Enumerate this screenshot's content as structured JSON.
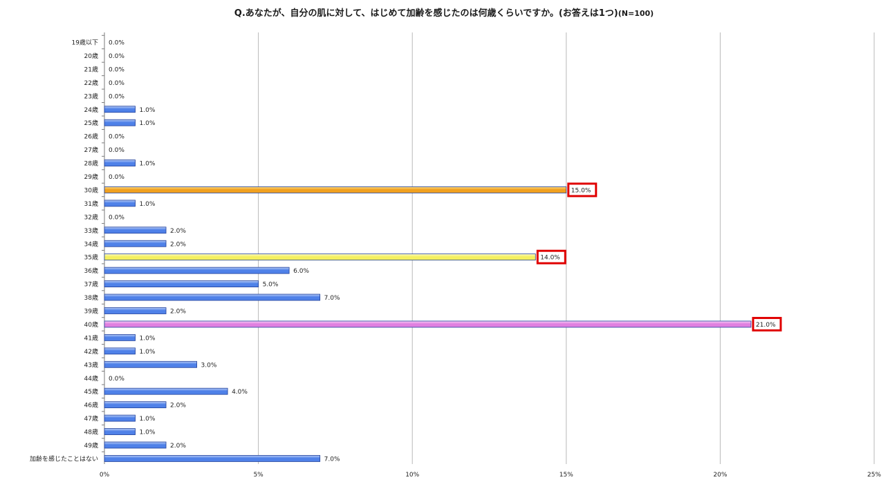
{
  "chart_data": {
    "type": "bar",
    "orientation": "horizontal",
    "title": "Q.あなたが、自分の肌に対して、はじめて加齢を感じたのは何歳くらいですか。(お答えは1つ)",
    "title_note": "(N=100)",
    "categories": [
      "19歳以下",
      "20歳",
      "21歳",
      "22歳",
      "23歳",
      "24歳",
      "25歳",
      "26歳",
      "27歳",
      "28歳",
      "29歳",
      "30歳",
      "31歳",
      "32歳",
      "33歳",
      "34歳",
      "35歳",
      "36歳",
      "37歳",
      "38歳",
      "39歳",
      "40歳",
      "41歳",
      "42歳",
      "43歳",
      "44歳",
      "45歳",
      "46歳",
      "47歳",
      "48歳",
      "49歳",
      "加齢を感じたことはない"
    ],
    "values": [
      0,
      0,
      0,
      0,
      0,
      1,
      1,
      0,
      0,
      1,
      0,
      15,
      1,
      0,
      2,
      2,
      14,
      6,
      5,
      7,
      2,
      21,
      1,
      1,
      3,
      0,
      4,
      2,
      1,
      1,
      2,
      7
    ],
    "value_labels": [
      "0.0%",
      "0.0%",
      "0.0%",
      "0.0%",
      "0.0%",
      "1.0%",
      "1.0%",
      "0.0%",
      "0.0%",
      "1.0%",
      "0.0%",
      "15.0%",
      "1.0%",
      "0.0%",
      "2.0%",
      "2.0%",
      "14.0%",
      "6.0%",
      "5.0%",
      "7.0%",
      "2.0%",
      "21.0%",
      "1.0%",
      "1.0%",
      "3.0%",
      "0.0%",
      "4.0%",
      "2.0%",
      "1.0%",
      "1.0%",
      "2.0%",
      "7.0%"
    ],
    "xlim": [
      0,
      25
    ],
    "x_ticks": [
      "0%",
      "5%",
      "10%",
      "15%",
      "20%",
      "25%"
    ],
    "x_tick_values": [
      0,
      5,
      10,
      15,
      20,
      25
    ],
    "grid": true,
    "legend": "none",
    "colors": {
      "default_bar": "#4f81e8",
      "default_bar_light": "#b9cdf7",
      "bar_border": "#1f3f9a",
      "highlight_30": "#f0a020",
      "highlight_30_light": "#ffe08a",
      "highlight_35": "#f4f060",
      "highlight_35_light": "#fffcc8",
      "highlight_40": "#e080e0",
      "highlight_40_light": "#f8d0f8",
      "callout_box": "#e00000",
      "gridline": "#b8b8b8"
    },
    "highlighted": [
      {
        "category": "30歳",
        "style": "highlight_30"
      },
      {
        "category": "35歳",
        "style": "highlight_35"
      },
      {
        "category": "40歳",
        "style": "highlight_40"
      }
    ]
  }
}
